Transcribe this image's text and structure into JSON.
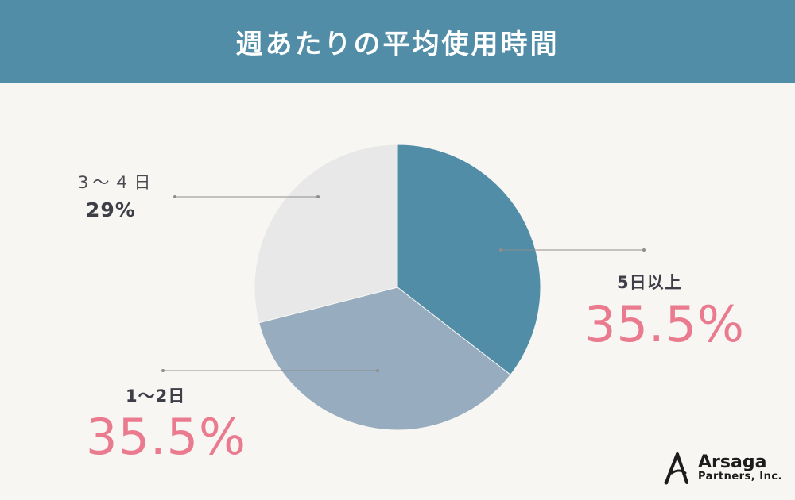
{
  "header": {
    "title": "週あたりの平均使用時間"
  },
  "chart_data": {
    "type": "pie",
    "title": "週あたりの平均使用時間",
    "slices": [
      {
        "label": "5日以上",
        "value": 35.5,
        "display": "35.5%",
        "color": "#528da7"
      },
      {
        "label": "1〜2日",
        "value": 35.5,
        "display": "35.5%",
        "color": "#98acbf"
      },
      {
        "label": "3〜４日",
        "value": 29,
        "display": "29%",
        "color": "#e8e8e8"
      }
    ],
    "start": "12 o'clock",
    "direction": "clockwise",
    "label_color_emphasis": "#ea7a8e"
  },
  "logo": {
    "name": "Arsaga",
    "sub": "Partners, Inc."
  }
}
